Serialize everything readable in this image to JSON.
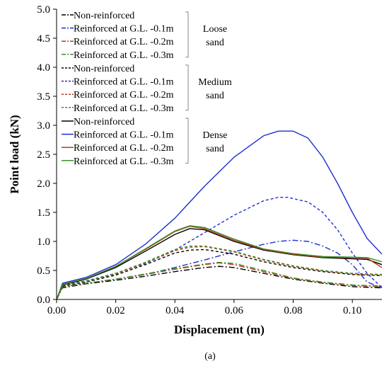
{
  "chart_data": {
    "type": "line",
    "xlabel": "Displacement (m)",
    "ylabel": "Point load (kN)",
    "caption": "(a)",
    "xlim": [
      0,
      0.11
    ],
    "ylim": [
      0,
      5.0
    ],
    "x_ticks": [
      "0.00",
      "0.02",
      "0.04",
      "0.06",
      "0.08",
      "0.10"
    ],
    "y_ticks": [
      "0.0",
      "0.5",
      "1.0",
      "1.5",
      "2.0",
      "2.5",
      "3.0",
      "3.5",
      "4.0",
      "4.5",
      "5.0"
    ],
    "grid": false,
    "legend_position": "top-left",
    "colors": {
      "non_reinforced": "#000000",
      "gl_0_1": "#1f2fd0",
      "gl_0_2": "#c0391b",
      "gl_0_3": "#3a8f2a"
    },
    "groups": [
      {
        "label_lines": [
          "Loose",
          "sand"
        ],
        "line_style": "dash-dot",
        "entries": [
          "Non-reinforced",
          "Reinforced at G.L. -0.1m",
          "Reinforced at G.L. -0.2m",
          "Reinforced at G.L. -0.3m"
        ],
        "series": [
          {
            "name": "Non-reinforced",
            "color_key": "non_reinforced",
            "x": [
              0,
              0.002,
              0.01,
              0.02,
              0.03,
              0.04,
              0.05,
              0.055,
              0.06,
              0.07,
              0.08,
              0.09,
              0.1,
              0.11
            ],
            "y": [
              0,
              0.2,
              0.27,
              0.33,
              0.4,
              0.48,
              0.55,
              0.57,
              0.55,
              0.45,
              0.35,
              0.28,
              0.22,
              0.2
            ]
          },
          {
            "name": "Reinforced at G.L. -0.1m",
            "color_key": "gl_0_1",
            "x": [
              0,
              0.002,
              0.01,
              0.02,
              0.03,
              0.04,
              0.05,
              0.06,
              0.07,
              0.075,
              0.08,
              0.085,
              0.09,
              0.095,
              0.1,
              0.105,
              0.11
            ],
            "y": [
              0,
              0.22,
              0.28,
              0.35,
              0.43,
              0.55,
              0.68,
              0.82,
              0.95,
              1.0,
              1.02,
              1.0,
              0.92,
              0.8,
              0.6,
              0.3,
              0.2
            ]
          },
          {
            "name": "Reinforced at G.L. -0.2m",
            "color_key": "gl_0_2",
            "x": [
              0,
              0.002,
              0.01,
              0.02,
              0.03,
              0.04,
              0.05,
              0.055,
              0.06,
              0.07,
              0.08,
              0.09,
              0.1,
              0.11
            ],
            "y": [
              0,
              0.21,
              0.28,
              0.35,
              0.43,
              0.52,
              0.6,
              0.63,
              0.6,
              0.48,
              0.36,
              0.29,
              0.24,
              0.22
            ]
          },
          {
            "name": "Reinforced at G.L. -0.3m",
            "color_key": "gl_0_3",
            "x": [
              0,
              0.002,
              0.01,
              0.02,
              0.03,
              0.04,
              0.05,
              0.055,
              0.06,
              0.07,
              0.08,
              0.09,
              0.1,
              0.11
            ],
            "y": [
              0,
              0.22,
              0.28,
              0.35,
              0.44,
              0.53,
              0.61,
              0.64,
              0.62,
              0.5,
              0.37,
              0.3,
              0.25,
              0.23
            ]
          }
        ]
      },
      {
        "label_lines": [
          "Medium",
          "sand"
        ],
        "line_style": "dashed",
        "entries": [
          "Non-reinforced",
          "Reinforced at G.L. -0.1m",
          "Reinforced at G.L. -0.2m",
          "Reinforced at G.L. -0.3m"
        ],
        "series": [
          {
            "name": "Non-reinforced",
            "color_key": "non_reinforced",
            "x": [
              0,
              0.002,
              0.01,
              0.02,
              0.03,
              0.04,
              0.045,
              0.05,
              0.06,
              0.07,
              0.08,
              0.09,
              0.1,
              0.11
            ],
            "y": [
              0,
              0.23,
              0.3,
              0.42,
              0.6,
              0.8,
              0.85,
              0.86,
              0.78,
              0.65,
              0.55,
              0.48,
              0.43,
              0.41
            ]
          },
          {
            "name": "Reinforced at G.L. -0.1m",
            "color_key": "gl_0_1",
            "x": [
              0,
              0.002,
              0.01,
              0.02,
              0.03,
              0.04,
              0.05,
              0.06,
              0.07,
              0.075,
              0.078,
              0.085,
              0.09,
              0.095,
              0.1,
              0.105,
              0.11
            ],
            "y": [
              0,
              0.25,
              0.32,
              0.45,
              0.62,
              0.85,
              1.15,
              1.45,
              1.7,
              1.76,
              1.76,
              1.68,
              1.5,
              1.2,
              0.8,
              0.45,
              0.2
            ]
          },
          {
            "name": "Reinforced at G.L. -0.2m",
            "color_key": "gl_0_2",
            "x": [
              0,
              0.002,
              0.01,
              0.02,
              0.03,
              0.04,
              0.045,
              0.05,
              0.06,
              0.07,
              0.08,
              0.09,
              0.1,
              0.11
            ],
            "y": [
              0,
              0.24,
              0.31,
              0.44,
              0.63,
              0.84,
              0.9,
              0.91,
              0.82,
              0.68,
              0.57,
              0.49,
              0.44,
              0.42
            ]
          },
          {
            "name": "Reinforced at G.L. -0.3m",
            "color_key": "gl_0_3",
            "x": [
              0,
              0.002,
              0.01,
              0.02,
              0.03,
              0.04,
              0.045,
              0.05,
              0.06,
              0.07,
              0.08,
              0.09,
              0.1,
              0.11
            ],
            "y": [
              0,
              0.24,
              0.31,
              0.45,
              0.64,
              0.86,
              0.92,
              0.92,
              0.83,
              0.69,
              0.58,
              0.5,
              0.45,
              0.43
            ]
          }
        ]
      },
      {
        "label_lines": [
          "Dense",
          "sand"
        ],
        "line_style": "solid",
        "entries": [
          "Non-reinforced",
          "Reinforced at G.L. -0.1m",
          "Reinforced at G.L. -0.2m",
          "Reinforced at G.L. -0.3m"
        ],
        "series": [
          {
            "name": "Non-reinforced",
            "color_key": "non_reinforced",
            "x": [
              0,
              0.002,
              0.01,
              0.02,
              0.03,
              0.04,
              0.045,
              0.05,
              0.06,
              0.07,
              0.08,
              0.09,
              0.1,
              0.105,
              0.11
            ],
            "y": [
              0,
              0.25,
              0.35,
              0.55,
              0.83,
              1.12,
              1.22,
              1.2,
              1.0,
              0.85,
              0.77,
              0.72,
              0.7,
              0.69,
              0.6
            ]
          },
          {
            "name": "Reinforced at G.L. -0.1m",
            "color_key": "gl_0_1",
            "x": [
              0,
              0.002,
              0.01,
              0.02,
              0.03,
              0.04,
              0.05,
              0.06,
              0.07,
              0.075,
              0.08,
              0.085,
              0.09,
              0.095,
              0.1,
              0.105,
              0.11
            ],
            "y": [
              0,
              0.28,
              0.38,
              0.6,
              0.95,
              1.4,
              1.95,
              2.45,
              2.82,
              2.9,
              2.9,
              2.78,
              2.45,
              2.0,
              1.5,
              1.05,
              0.78
            ]
          },
          {
            "name": "Reinforced at G.L. -0.2m",
            "color_key": "gl_0_2",
            "x": [
              0,
              0.002,
              0.01,
              0.02,
              0.03,
              0.04,
              0.045,
              0.05,
              0.06,
              0.07,
              0.08,
              0.09,
              0.1,
              0.105,
              0.11
            ],
            "y": [
              0,
              0.26,
              0.36,
              0.57,
              0.86,
              1.17,
              1.26,
              1.22,
              1.02,
              0.86,
              0.78,
              0.73,
              0.72,
              0.71,
              0.55
            ]
          },
          {
            "name": "Reinforced at G.L. -0.3m",
            "color_key": "gl_0_3",
            "x": [
              0,
              0.002,
              0.01,
              0.02,
              0.03,
              0.04,
              0.045,
              0.05,
              0.06,
              0.07,
              0.08,
              0.09,
              0.1,
              0.105,
              0.11
            ],
            "y": [
              0,
              0.26,
              0.36,
              0.57,
              0.87,
              1.18,
              1.27,
              1.24,
              1.04,
              0.87,
              0.79,
              0.74,
              0.73,
              0.72,
              0.65
            ]
          }
        ]
      }
    ]
  }
}
